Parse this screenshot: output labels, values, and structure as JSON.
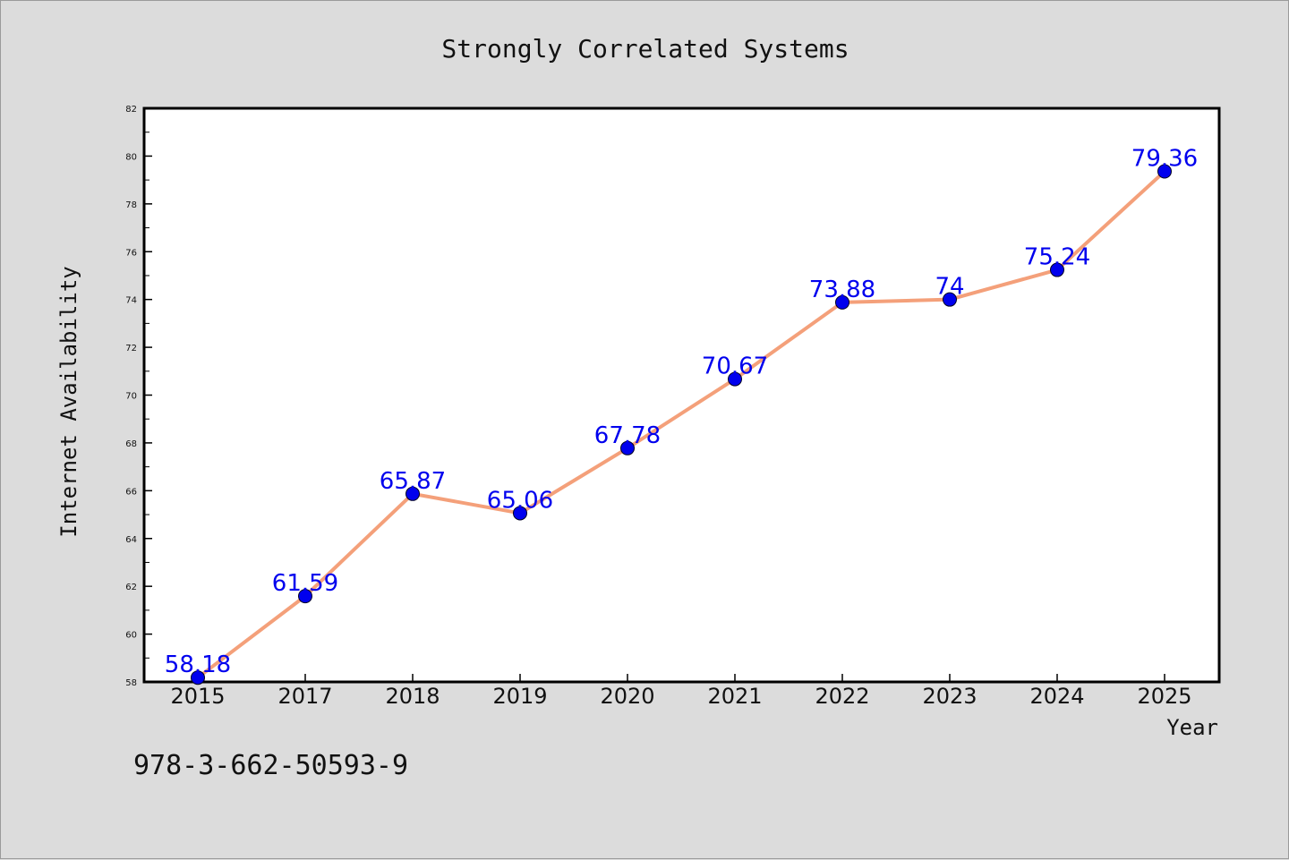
{
  "chart_data": {
    "type": "line",
    "title": "Strongly Correlated Systems",
    "xlabel": "Year",
    "ylabel": "Internet Availability",
    "categories": [
      "2015",
      "2017",
      "2018",
      "2019",
      "2020",
      "2021",
      "2022",
      "2023",
      "2024",
      "2025"
    ],
    "series": [
      {
        "values": [
          58.18,
          61.59,
          65.87,
          65.06,
          67.78,
          70.67,
          73.88,
          74,
          75.24,
          79.36
        ],
        "labels": [
          "58.18",
          "61.59",
          "65.87",
          "65.06",
          "67.78",
          "70.67",
          "73.88",
          "74",
          "75.24",
          "79.36"
        ],
        "line_color": "#f4a07a",
        "marker_color": "#0000ee",
        "label_color": "#0000ee"
      }
    ],
    "ylim": [
      58,
      82
    ],
    "yticks": [
      58,
      60,
      62,
      64,
      66,
      68,
      70,
      72,
      74,
      76,
      78,
      80,
      82
    ],
    "grid": false,
    "legend": "none"
  },
  "footer": {
    "text": "978-3-662-50593-9"
  },
  "colors": {
    "background": "#dcdcdc",
    "plot_background": "#ffffff",
    "axis": "#000000"
  }
}
